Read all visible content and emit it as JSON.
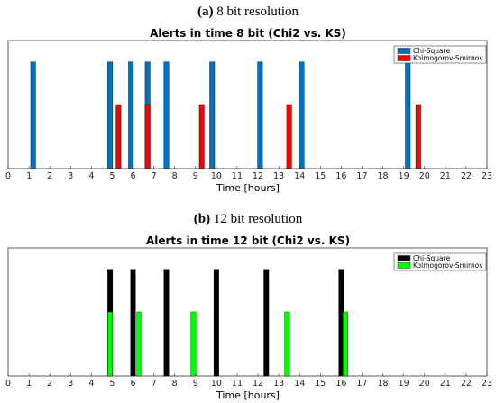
{
  "chart_data": [
    {
      "type": "bar",
      "heading_label": "(a)",
      "heading_text": " 8 bit resolution",
      "title": "Alerts in time 8 bit (Chi2 vs. KS)",
      "xlabel": "Time [hours]",
      "ylabel": "",
      "xlim": [
        0,
        23
      ],
      "ylim": [
        0,
        1.2
      ],
      "xticks": [
        "0",
        "1",
        "2",
        "3",
        "4",
        "5",
        "6",
        "7",
        "8",
        "9",
        "10",
        "11",
        "12",
        "13",
        "14",
        "15",
        "16",
        "17",
        "18",
        "19",
        "20",
        "21",
        "22",
        "23"
      ],
      "grid": false,
      "legend": "top-right",
      "series": [
        {
          "name": "Chi-Square",
          "color": "#0072BD",
          "x": [
            1.2,
            4.9,
            5.9,
            6.7,
            7.6,
            9.8,
            12.1,
            14.1,
            19.2
          ],
          "values": [
            1,
            1,
            1,
            1,
            1,
            1,
            1,
            1,
            1
          ]
        },
        {
          "name": "Kolmogorov-Smirnov",
          "color": "#FF0000",
          "x": [
            5.3,
            6.7,
            9.3,
            13.5,
            19.7
          ],
          "values": [
            0.6,
            0.6,
            0.6,
            0.6,
            0.6
          ]
        }
      ]
    },
    {
      "type": "bar",
      "heading_label": "(b)",
      "heading_text": " 12 bit resolution",
      "title": "Alerts in time 12 bit (Chi2 vs. KS)",
      "xlabel": "Time [hours]",
      "ylabel": "",
      "xlim": [
        0,
        23
      ],
      "ylim": [
        0,
        1.2
      ],
      "xticks": [
        "0",
        "1",
        "2",
        "3",
        "4",
        "5",
        "6",
        "7",
        "8",
        "9",
        "10",
        "11",
        "12",
        "13",
        "14",
        "15",
        "16",
        "17",
        "18",
        "19",
        "20",
        "21",
        "22",
        "23"
      ],
      "grid": false,
      "legend": "top-right",
      "series": [
        {
          "name": "Chi-Square",
          "color": "#000000",
          "x": [
            4.9,
            6.0,
            7.6,
            10.0,
            12.4,
            16.0
          ],
          "values": [
            1,
            1,
            1,
            1,
            1,
            1
          ]
        },
        {
          "name": "Kolmogorov-Smirnov",
          "color": "#00FF00",
          "x": [
            4.9,
            6.3,
            8.9,
            13.4,
            16.2
          ],
          "values": [
            0.6,
            0.6,
            0.6,
            0.6,
            0.6
          ]
        }
      ]
    }
  ]
}
